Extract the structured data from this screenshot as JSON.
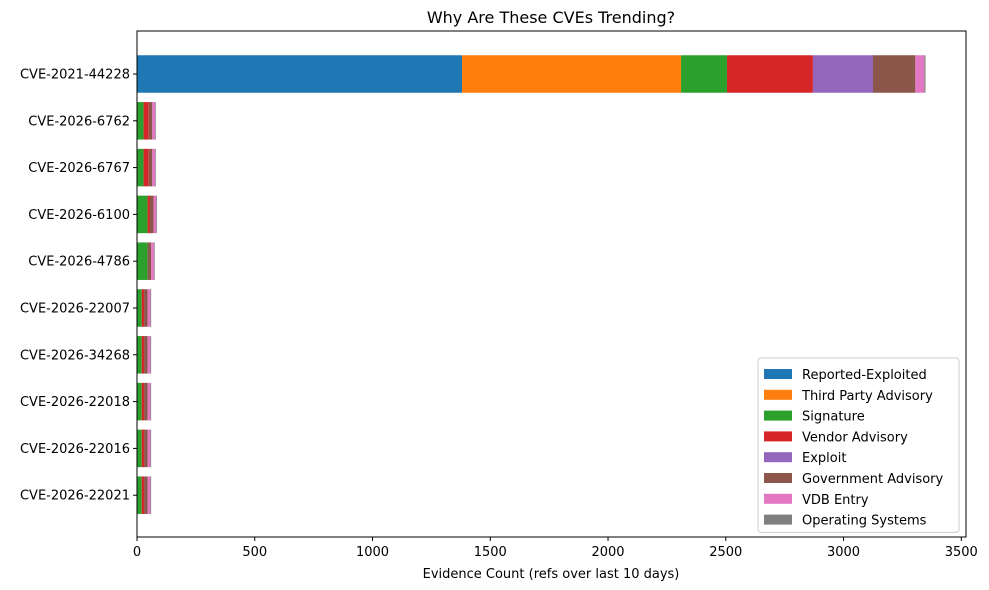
{
  "chart_data": {
    "type": "bar",
    "orientation": "horizontal",
    "stacked": true,
    "title": "Why Are These CVEs Trending?",
    "xlabel": "Evidence Count (refs over last 10 days)",
    "ylabel": "",
    "xlim": [
      0,
      3520
    ],
    "xticks": [
      0,
      500,
      1000,
      1500,
      2000,
      2500,
      3000,
      3500
    ],
    "grid": false,
    "legend_position": "lower-right",
    "categories": [
      "CVE-2021-44228",
      "CVE-2026-6762",
      "CVE-2026-6767",
      "CVE-2026-6100",
      "CVE-2026-4786",
      "CVE-2026-22007",
      "CVE-2026-34268",
      "CVE-2026-22018",
      "CVE-2026-22016",
      "CVE-2026-22021"
    ],
    "series": [
      {
        "name": "Reported-Exploited",
        "color": "#1f77b4",
        "values": [
          1380,
          0,
          0,
          0,
          0,
          0,
          0,
          0,
          0,
          0
        ]
      },
      {
        "name": "Third Party Advisory",
        "color": "#ff7f0e",
        "values": [
          930,
          0,
          0,
          0,
          0,
          0,
          0,
          0,
          0,
          0
        ]
      },
      {
        "name": "Signature",
        "color": "#2ca02c",
        "values": [
          195,
          28,
          28,
          45,
          45,
          20,
          20,
          20,
          20,
          20
        ]
      },
      {
        "name": "Vendor Advisory",
        "color": "#d62728",
        "values": [
          365,
          22,
          22,
          10,
          0,
          10,
          10,
          10,
          10,
          10
        ]
      },
      {
        "name": "Exploit",
        "color": "#9467bd",
        "values": [
          255,
          0,
          0,
          0,
          0,
          0,
          0,
          0,
          0,
          0
        ]
      },
      {
        "name": "Government Advisory",
        "color": "#8c564b",
        "values": [
          180,
          15,
          15,
          15,
          15,
          15,
          15,
          15,
          15,
          15
        ]
      },
      {
        "name": "VDB Entry",
        "color": "#e377c2",
        "values": [
          38,
          12,
          12,
          12,
          12,
          12,
          12,
          12,
          12,
          12
        ]
      },
      {
        "name": "Operating Systems",
        "color": "#7f7f7f",
        "values": [
          5,
          3,
          3,
          3,
          3,
          3,
          3,
          3,
          3,
          3
        ]
      }
    ]
  }
}
